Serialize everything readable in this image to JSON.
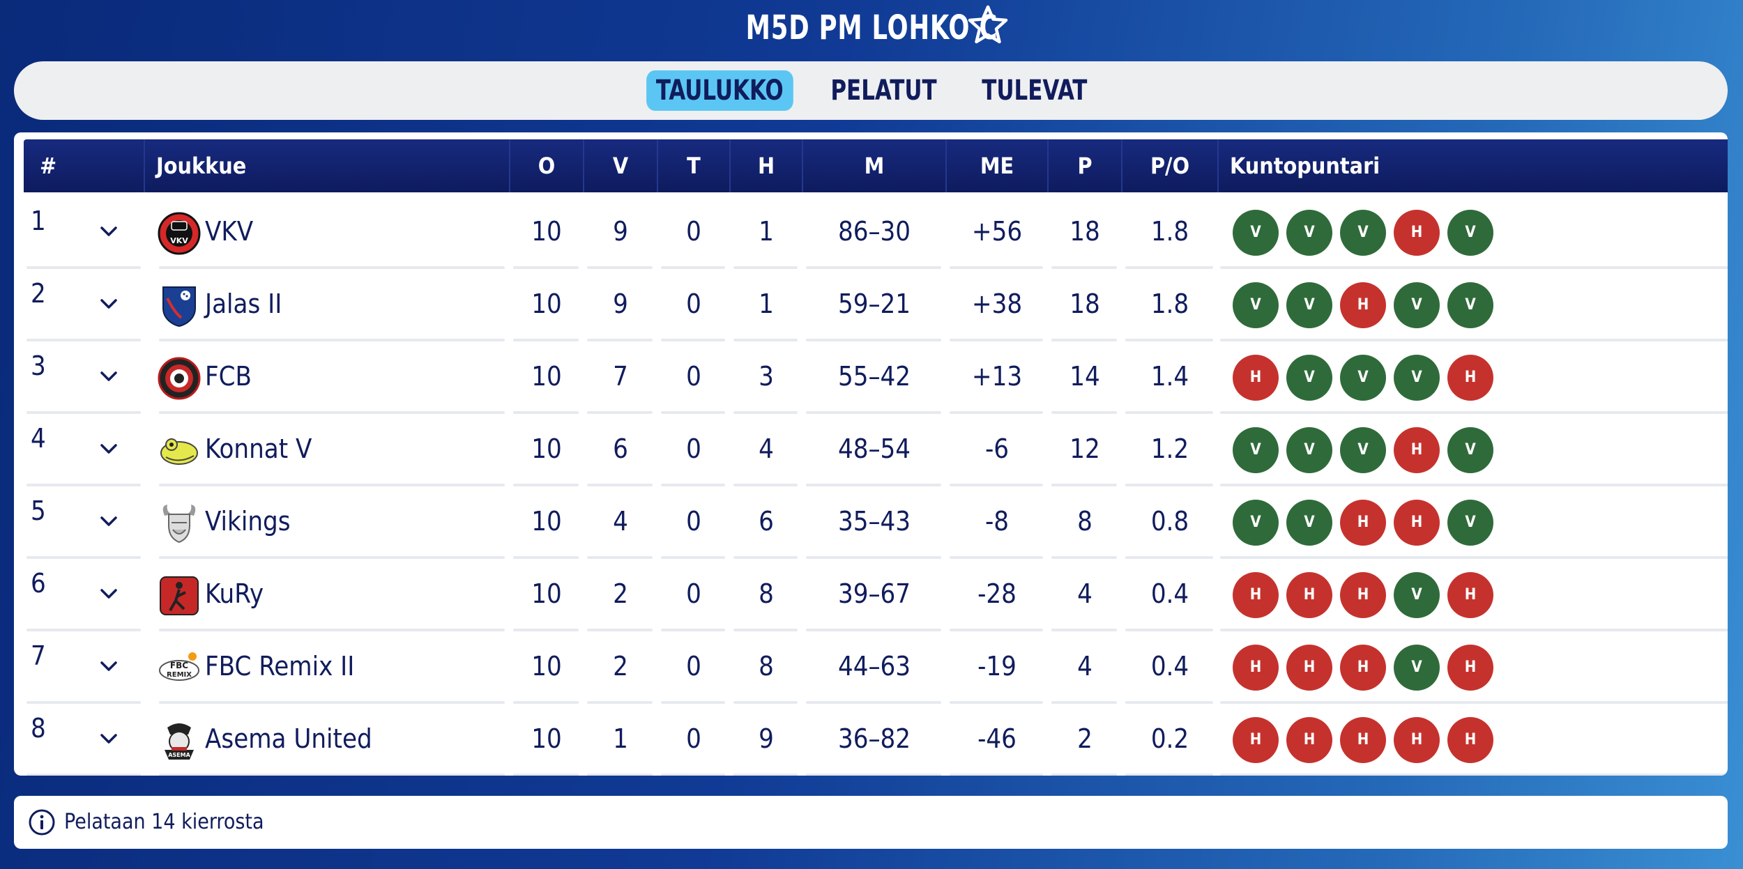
{
  "header": {
    "title": "M5D PM LOHKO C",
    "favorite_icon": "star-outline-icon"
  },
  "tabs": [
    {
      "label": "TAULUKKO",
      "active": true
    },
    {
      "label": "PELATUT",
      "active": false
    },
    {
      "label": "TULEVAT",
      "active": false
    }
  ],
  "table": {
    "columns": [
      "#",
      "Joukkue",
      "O",
      "V",
      "T",
      "H",
      "M",
      "ME",
      "P",
      "P/O",
      "Kuntopuntari"
    ],
    "rows": [
      {
        "pos": "1",
        "team": "VKV",
        "logo": "vkv-logo",
        "o": "10",
        "v": "9",
        "t": "0",
        "h": "1",
        "m": "86–30",
        "me": "+56",
        "p": "18",
        "po": "1.8",
        "form": [
          "V",
          "V",
          "V",
          "H",
          "V"
        ]
      },
      {
        "pos": "2",
        "team": "Jalas II",
        "logo": "jalas-logo",
        "o": "10",
        "v": "9",
        "t": "0",
        "h": "1",
        "m": "59–21",
        "me": "+38",
        "p": "18",
        "po": "1.8",
        "form": [
          "V",
          "V",
          "H",
          "V",
          "V"
        ]
      },
      {
        "pos": "3",
        "team": "FCB",
        "logo": "fcb-logo",
        "o": "10",
        "v": "7",
        "t": "0",
        "h": "3",
        "m": "55–42",
        "me": "+13",
        "p": "14",
        "po": "1.4",
        "form": [
          "H",
          "V",
          "V",
          "V",
          "H"
        ]
      },
      {
        "pos": "4",
        "team": "Konnat V",
        "logo": "konnat-logo",
        "o": "10",
        "v": "6",
        "t": "0",
        "h": "4",
        "m": "48–54",
        "me": "-6",
        "p": "12",
        "po": "1.2",
        "form": [
          "V",
          "V",
          "V",
          "H",
          "V"
        ]
      },
      {
        "pos": "5",
        "team": "Vikings",
        "logo": "vikings-logo",
        "o": "10",
        "v": "4",
        "t": "0",
        "h": "6",
        "m": "35–43",
        "me": "-8",
        "p": "8",
        "po": "0.8",
        "form": [
          "V",
          "V",
          "H",
          "H",
          "V"
        ]
      },
      {
        "pos": "6",
        "team": "KuRy",
        "logo": "kury-logo",
        "o": "10",
        "v": "2",
        "t": "0",
        "h": "8",
        "m": "39–67",
        "me": "-28",
        "p": "4",
        "po": "0.4",
        "form": [
          "H",
          "H",
          "H",
          "V",
          "H"
        ]
      },
      {
        "pos": "7",
        "team": "FBC Remix II",
        "logo": "fbc-remix-logo",
        "o": "10",
        "v": "2",
        "t": "0",
        "h": "8",
        "m": "44–63",
        "me": "-19",
        "p": "4",
        "po": "0.4",
        "form": [
          "H",
          "H",
          "H",
          "V",
          "H"
        ]
      },
      {
        "pos": "8",
        "team": "Asema United",
        "logo": "asema-united-logo",
        "o": "10",
        "v": "1",
        "t": "0",
        "h": "9",
        "m": "36–82",
        "me": "-46",
        "p": "2",
        "po": "0.2",
        "form": [
          "H",
          "H",
          "H",
          "H",
          "H"
        ]
      }
    ]
  },
  "footer": {
    "info_icon": "info-icon",
    "text": "Pelataan 14 kierrosta"
  },
  "colors": {
    "win": "#2f6b3a",
    "loss": "#c5322d",
    "header_bg": "#0e1b5e",
    "active_tab": "#5bc6f4",
    "text": "#101c5c"
  }
}
